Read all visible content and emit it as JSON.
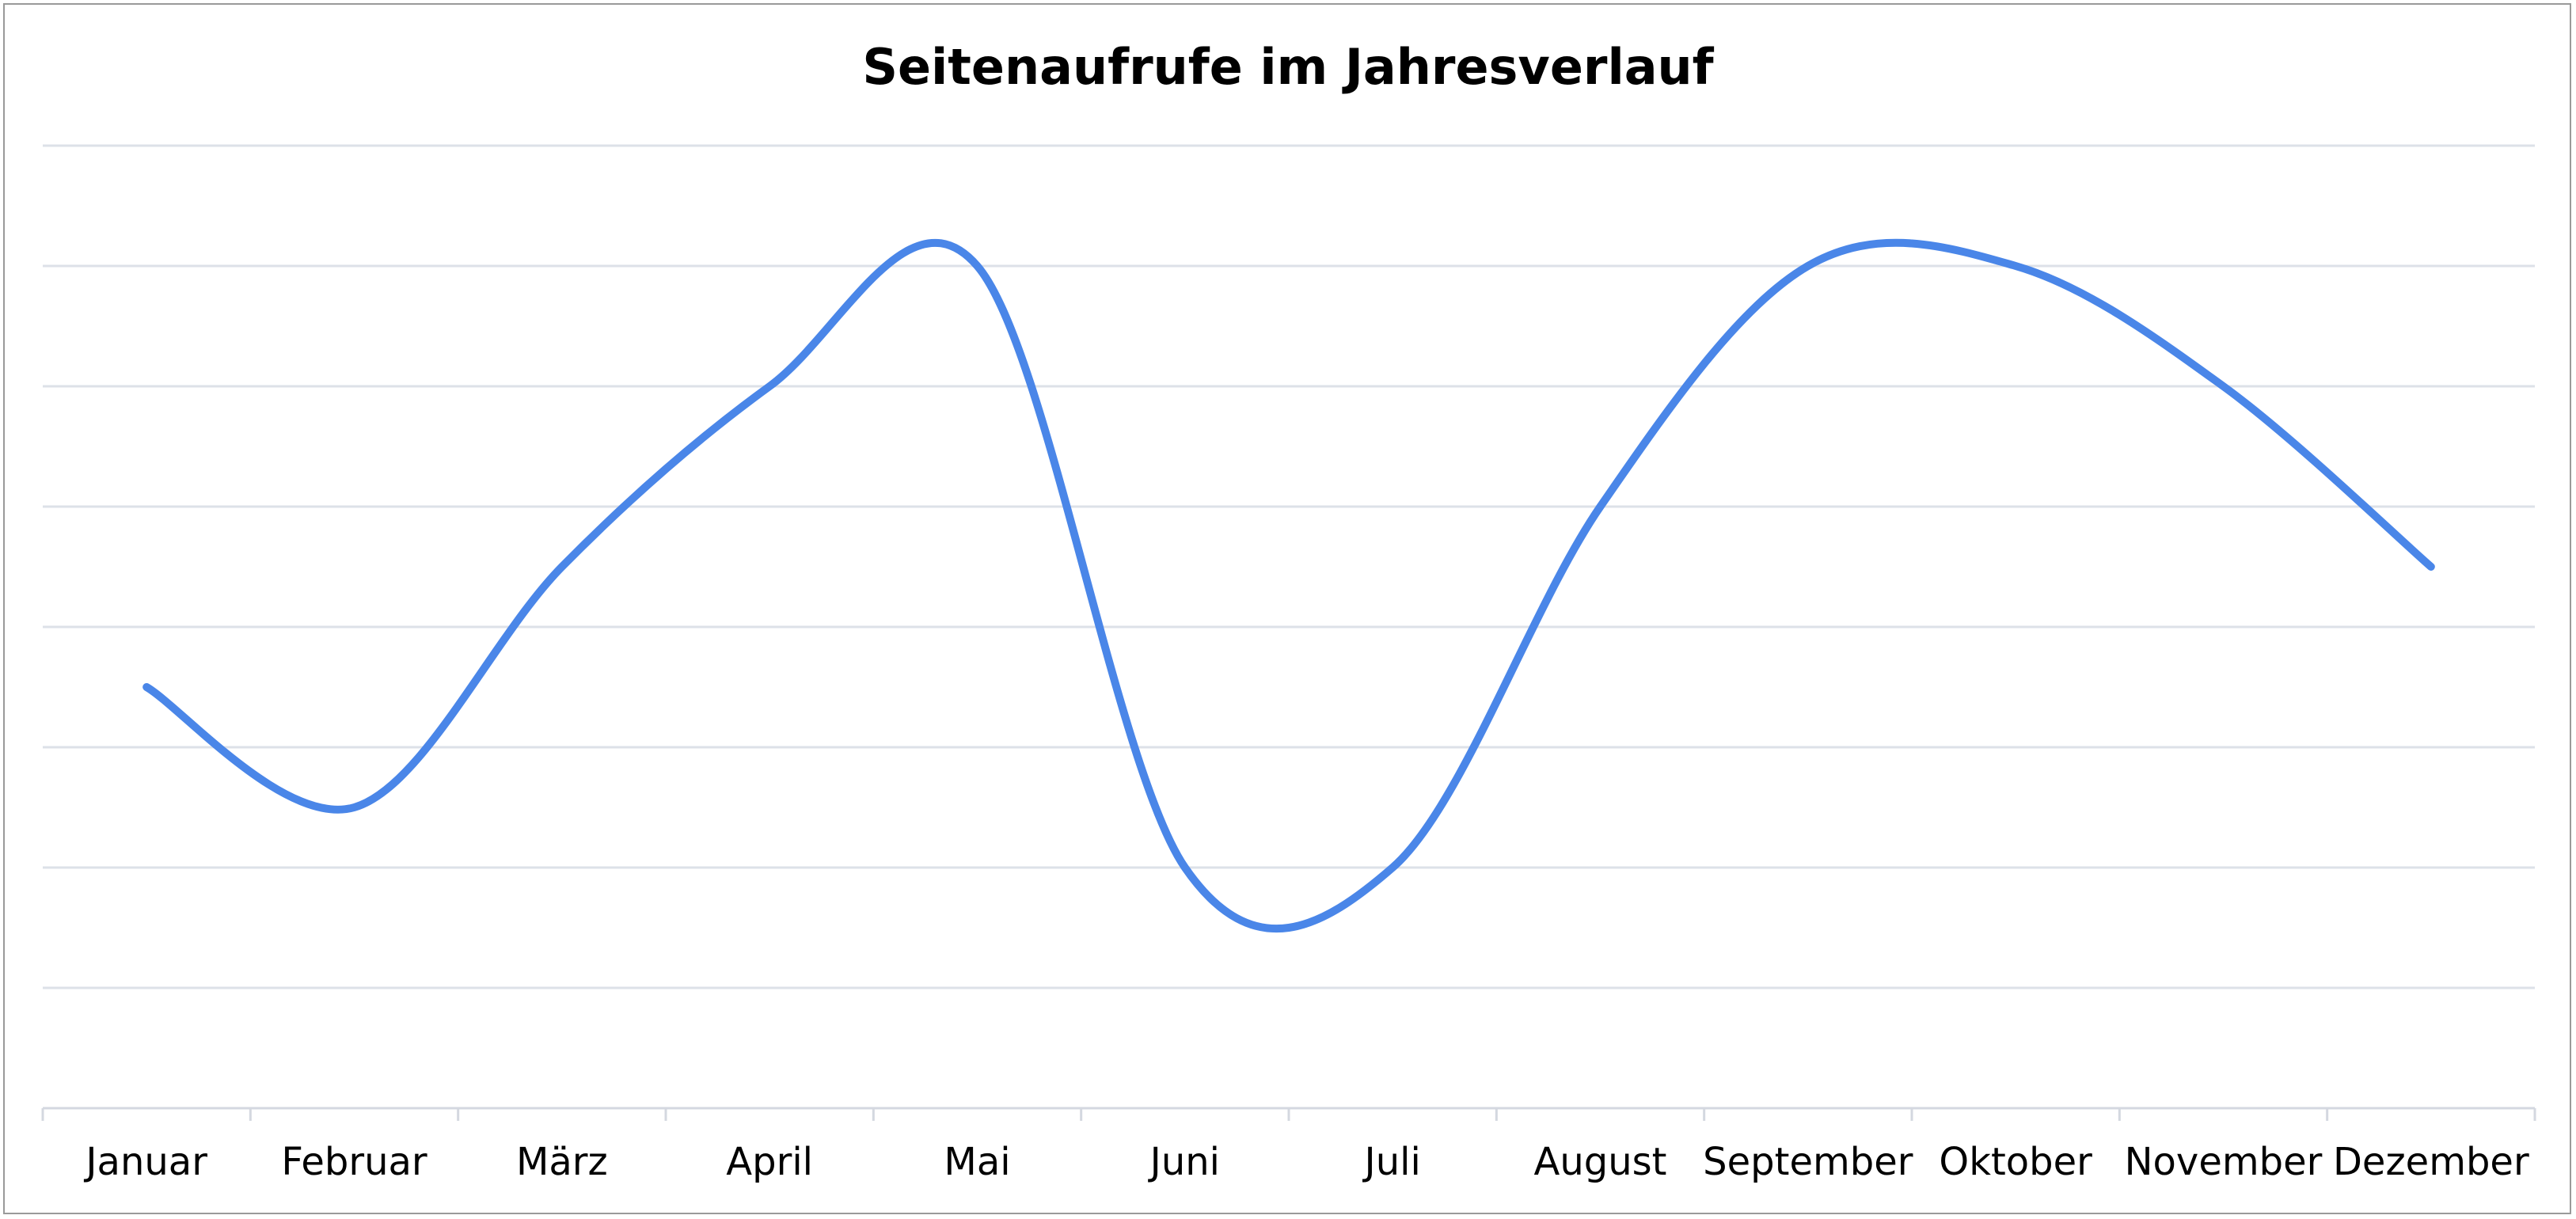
{
  "chart_data": {
    "type": "line",
    "title": "Seitenaufrufe im Jahresverlauf",
    "xlabel": "",
    "ylabel": "",
    "categories": [
      "Januar",
      "Februar",
      "März",
      "April",
      "Mai",
      "Juni",
      "Juli",
      "August",
      "September",
      "Oktober",
      "November",
      "Dezember"
    ],
    "series": [
      {
        "values": [
          3.5,
          2.5,
          4.5,
          6.0,
          7.0,
          2.0,
          2.0,
          5.0,
          7.0,
          7.0,
          6.0,
          4.5
        ]
      }
    ],
    "ylim": [
      0,
      8
    ],
    "y_gridlines": 8,
    "y_tick_labels_shown": false,
    "grid": true,
    "smooth": true,
    "legend": "none",
    "colors": {
      "series": "#4a86e8",
      "gridline": "#dde1e8",
      "axis": "#d4d8e0"
    }
  }
}
